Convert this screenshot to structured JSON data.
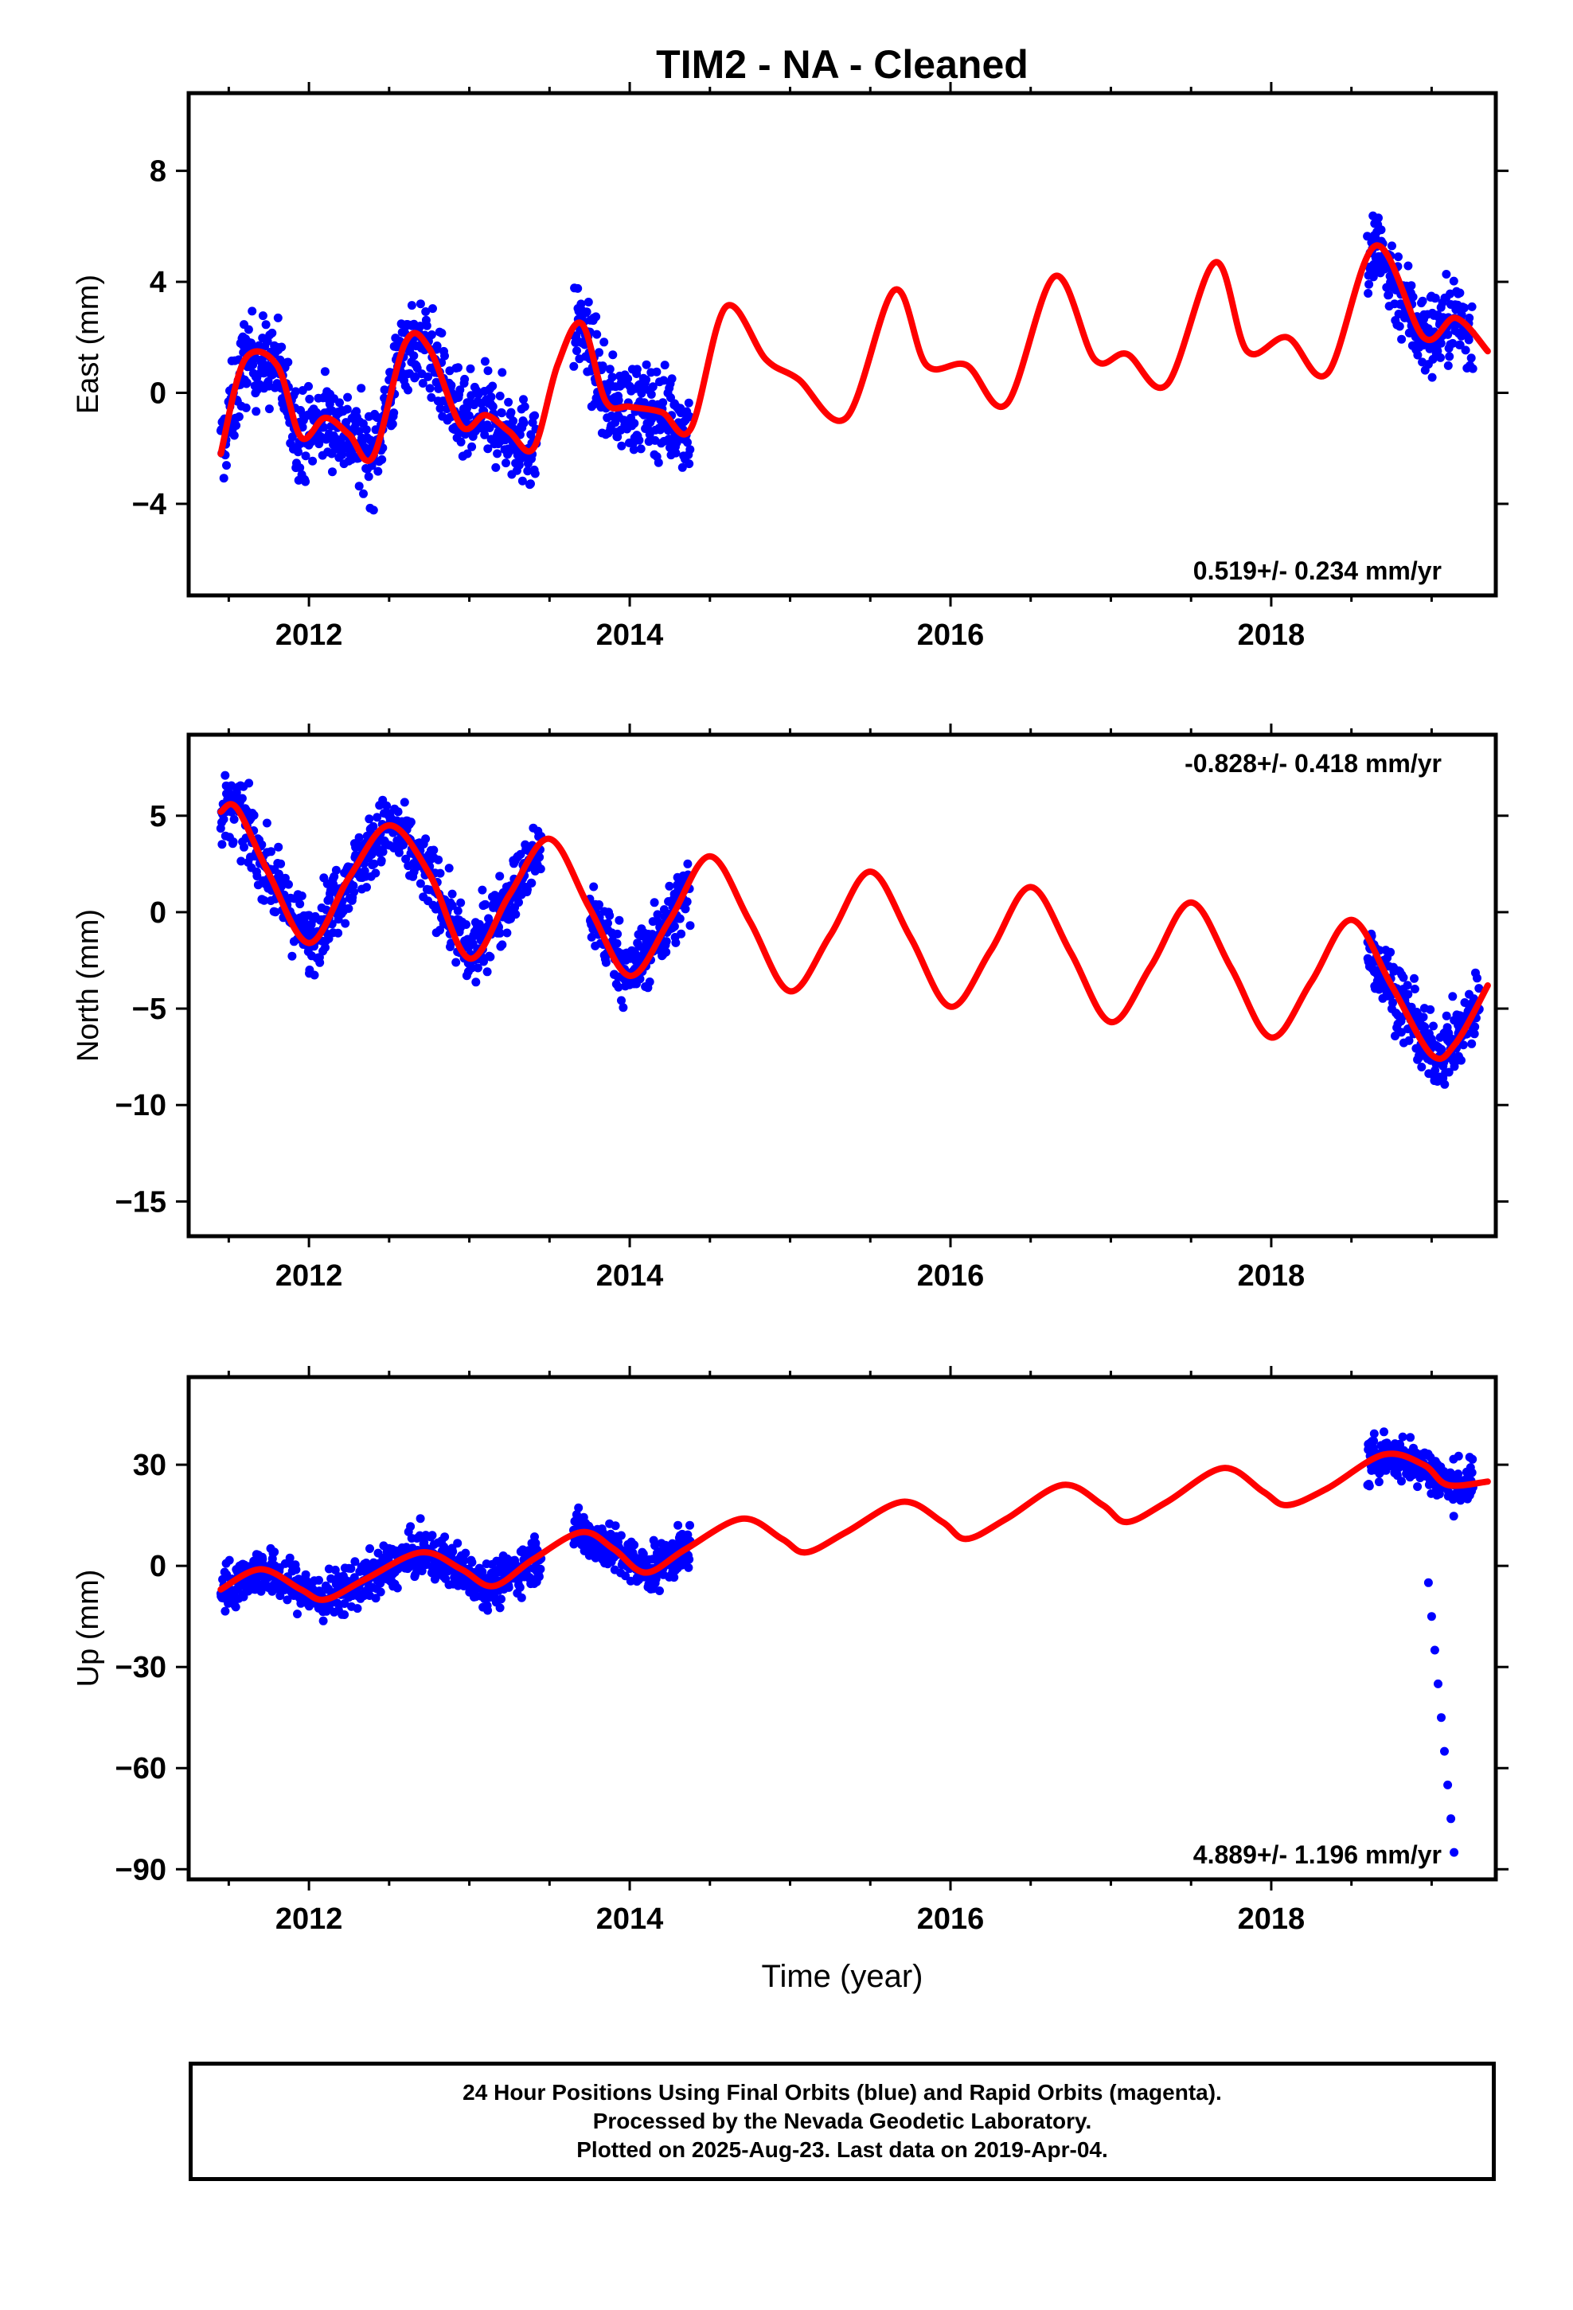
{
  "title": "TIM2  - NA - Cleaned",
  "colors": {
    "final_orbits": "#0000ff",
    "model": "#ff0000",
    "frame": "#000000"
  },
  "chart_data": [
    {
      "type": "scatter",
      "panel": "east",
      "ylabel": "East (mm)",
      "xlim": [
        2011.25,
        2019.4
      ],
      "ylim": [
        -7.3,
        10.8
      ],
      "yticks": [
        -4,
        0,
        4,
        8
      ],
      "xticks": [
        2012,
        2014,
        2016,
        2018
      ],
      "xtick_labels": [
        "2012",
        "2014",
        "2016",
        "2018"
      ],
      "rate_label": "0.519+/- 0.234 mm/yr",
      "rate_label_position": "bottom-right",
      "data_segments": [
        [
          2011.45,
          2013.42
        ],
        [
          2013.65,
          2014.38
        ],
        [
          2018.6,
          2019.26
        ]
      ],
      "data_spread": 1.6,
      "series": [
        {
          "name": "Final Orbits",
          "color": "#0000ff"
        },
        {
          "name": "Model",
          "color": "#ff0000"
        }
      ],
      "model": {
        "x": [
          2011.45,
          2011.6,
          2011.8,
          2011.95,
          2012.1,
          2012.25,
          2012.4,
          2012.6,
          2012.75,
          2012.95,
          2013.1,
          2013.25,
          2013.4,
          2013.55,
          2013.7,
          2013.85,
          2014.0,
          2014.2,
          2014.38,
          2014.6,
          2014.85,
          2015.05,
          2015.35,
          2015.65,
          2015.85,
          2016.1,
          2016.35,
          2016.65,
          2016.9,
          2017.1,
          2017.35,
          2017.65,
          2017.85,
          2018.1,
          2018.35,
          2018.65,
          2018.95,
          2019.15,
          2019.35
        ],
        "y": [
          -2.2,
          1.2,
          1.0,
          -1.6,
          -0.9,
          -1.5,
          -2.3,
          1.8,
          1.6,
          -1.2,
          -0.8,
          -1.4,
          -2.0,
          1.0,
          2.5,
          -0.3,
          -0.5,
          -0.7,
          -1.3,
          3.1,
          1.2,
          0.5,
          -0.9,
          3.7,
          1.0,
          1.0,
          -0.4,
          4.2,
          1.2,
          1.4,
          0.3,
          4.7,
          1.5,
          2.0,
          0.7,
          5.3,
          2.0,
          2.7,
          1.5
        ]
      }
    },
    {
      "type": "scatter",
      "panel": "north",
      "ylabel": "North (mm)",
      "xlim": [
        2011.25,
        2019.4
      ],
      "ylim": [
        -16.8,
        9.2
      ],
      "yticks": [
        -15,
        -10,
        -5,
        0,
        5
      ],
      "xticks": [
        2012,
        2014,
        2016,
        2018
      ],
      "xtick_labels": [
        "2012",
        "2014",
        "2016",
        "2018"
      ],
      "rate_label": "-0.828+/- 0.418 mm/yr",
      "rate_label_position": "top-right",
      "data_segments": [
        [
          2011.45,
          2013.45
        ],
        [
          2013.75,
          2014.38
        ],
        [
          2018.6,
          2019.3
        ]
      ],
      "data_spread": 1.8,
      "series": [
        {
          "name": "Final Orbits",
          "color": "#0000ff"
        },
        {
          "name": "Model",
          "color": "#ff0000"
        }
      ],
      "model": {
        "x": [
          2011.45,
          2011.55,
          2011.75,
          2012.0,
          2012.25,
          2012.5,
          2012.75,
          2013.0,
          2013.25,
          2013.5,
          2013.75,
          2014.0,
          2014.25,
          2014.5,
          2014.75,
          2015.0,
          2015.25,
          2015.5,
          2015.75,
          2016.0,
          2016.25,
          2016.5,
          2016.75,
          2017.0,
          2017.25,
          2017.5,
          2017.75,
          2018.0,
          2018.25,
          2018.5,
          2018.75,
          2019.0,
          2019.15,
          2019.35
        ],
        "y": [
          5.2,
          5.4,
          2.0,
          -1.6,
          1.8,
          4.5,
          2.0,
          -2.4,
          0.9,
          3.8,
          0.2,
          -3.3,
          -0.4,
          2.9,
          -0.5,
          -4.1,
          -1.2,
          2.1,
          -1.3,
          -4.9,
          -2.0,
          1.3,
          -2.1,
          -5.7,
          -2.8,
          0.5,
          -2.9,
          -6.5,
          -3.6,
          -0.4,
          -3.8,
          -7.4,
          -6.8,
          -3.8
        ]
      }
    },
    {
      "type": "scatter",
      "panel": "up",
      "ylabel": "Up (mm)",
      "xlabel": "Time (year)",
      "xlim": [
        2011.25,
        2019.4
      ],
      "ylim": [
        -93,
        56
      ],
      "yticks": [
        -90,
        -60,
        -30,
        0,
        30
      ],
      "xticks": [
        2012,
        2014,
        2016,
        2018
      ],
      "xtick_labels": [
        "2012",
        "2014",
        "2016",
        "2018"
      ],
      "rate_label": "4.889+/- 1.196 mm/yr",
      "rate_label_position": "bottom-right",
      "data_segments": [
        [
          2011.45,
          2013.45
        ],
        [
          2013.65,
          2014.38
        ],
        [
          2018.6,
          2019.26
        ]
      ],
      "data_spread": 7,
      "outliers": {
        "x": [
          2018.98,
          2019.0,
          2019.02,
          2019.04,
          2019.06,
          2019.08,
          2019.1,
          2019.12,
          2019.14
        ],
        "y": [
          -5,
          -15,
          -25,
          -35,
          -45,
          -55,
          -65,
          -75,
          -85
        ]
      },
      "series": [
        {
          "name": "Final Orbits",
          "color": "#0000ff"
        },
        {
          "name": "Model",
          "color": "#ff0000"
        }
      ],
      "model": {
        "x": [
          2011.45,
          2011.7,
          2011.95,
          2012.1,
          2012.35,
          2012.7,
          2012.95,
          2013.15,
          2013.4,
          2013.7,
          2013.9,
          2014.1,
          2014.35,
          2014.7,
          2014.95,
          2015.1,
          2015.35,
          2015.7,
          2015.95,
          2016.1,
          2016.35,
          2016.7,
          2016.95,
          2017.1,
          2017.35,
          2017.7,
          2017.95,
          2018.1,
          2018.35,
          2018.7,
          2018.95,
          2019.1,
          2019.35
        ],
        "y": [
          -7,
          -1,
          -7,
          -10,
          -4,
          4,
          -1,
          -6,
          2,
          10,
          5,
          -2,
          5,
          14,
          8,
          4,
          10,
          19,
          13,
          8,
          14,
          24,
          18,
          13,
          19,
          29,
          22,
          18,
          23,
          33,
          30,
          24,
          25
        ]
      }
    }
  ],
  "caption": {
    "line1": "24 Hour Positions Using Final Orbits (blue) and Rapid Orbits (magenta).",
    "line2": "Processed by the Nevada Geodetic Laboratory.",
    "line3": "Plotted on 2025-Aug-23. Last data on 2019-Apr-04."
  }
}
